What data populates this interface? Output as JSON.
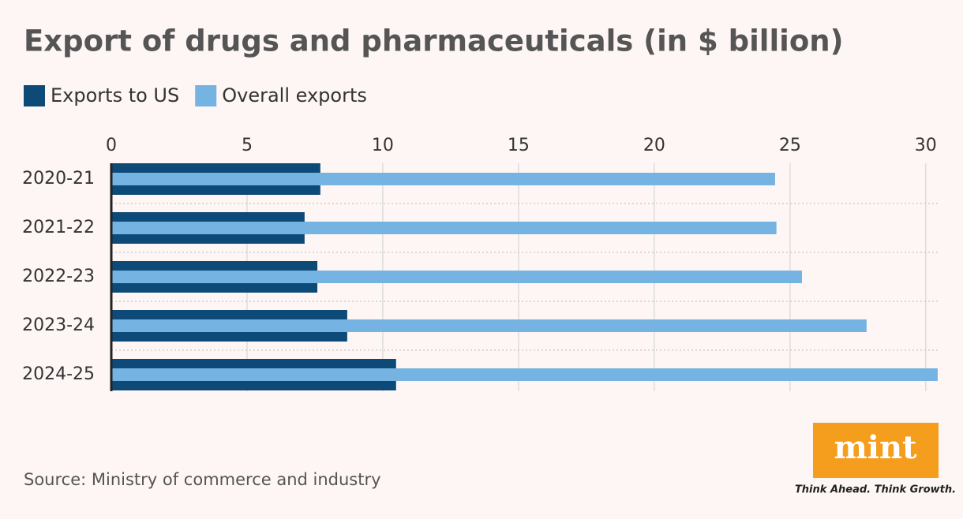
{
  "chart_data": {
    "type": "hbar",
    "title": "Export of drugs and pharmaceuticals (in $ billion)",
    "categories": [
      "2020-21",
      "2021-22",
      "2022-23",
      "2023-24",
      "2024-25"
    ],
    "series": [
      {
        "name": "Exports to US",
        "color": "#0e4a78",
        "values": [
          7.7,
          7.12,
          7.59,
          8.69,
          10.49
        ]
      },
      {
        "name": "Overall exports",
        "color": "#74b3e2",
        "values": [
          24.45,
          24.5,
          25.44,
          27.82,
          30.44
        ]
      }
    ],
    "xlim": [
      0,
      30.5
    ],
    "xticks": [
      0,
      5,
      10,
      15,
      20,
      25,
      30
    ],
    "grid": true,
    "legend": "top-left"
  },
  "source": "Source: Ministry of commerce and industry",
  "logo": {
    "name": "mint",
    "tagline": "Think Ahead. Think Growth."
  }
}
